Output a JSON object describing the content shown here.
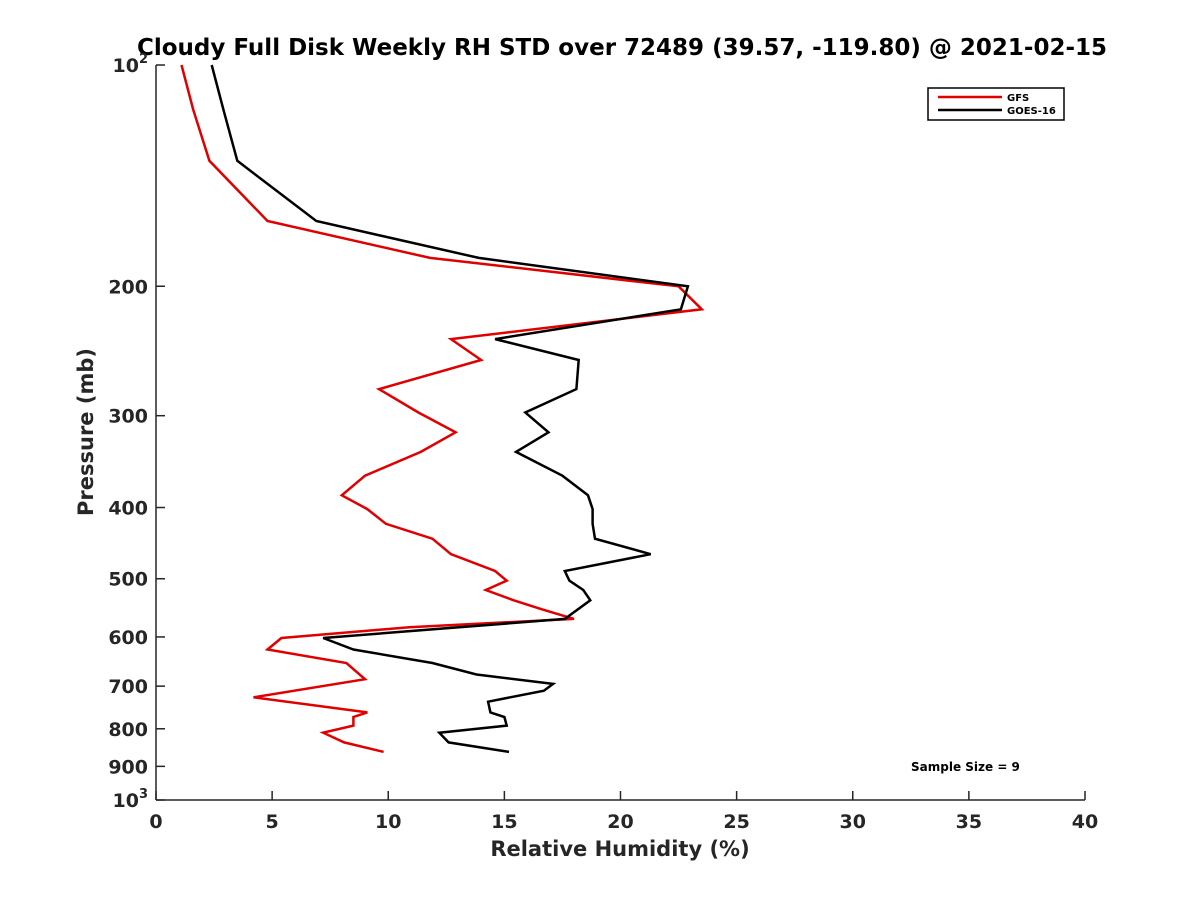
{
  "chart_data": {
    "type": "line",
    "title": "Cloudy Full Disk Weekly RH STD over 72489 (39.57, -119.80) @ 2021-02-15",
    "xlabel": "Relative Humidity (%)",
    "ylabel": "Pressure (mb)",
    "xlim": [
      0,
      40
    ],
    "ylim": [
      100,
      1000
    ],
    "y_scale": "log",
    "y_reversed": true,
    "x_ticks": [
      0,
      5,
      10,
      15,
      20,
      25,
      30,
      35,
      40
    ],
    "y_ticks": [
      {
        "value": 100,
        "label": "10",
        "sup": "2"
      },
      {
        "value": 200,
        "label": "200"
      },
      {
        "value": 300,
        "label": "300"
      },
      {
        "value": 400,
        "label": "400"
      },
      {
        "value": 500,
        "label": "500"
      },
      {
        "value": 600,
        "label": "600"
      },
      {
        "value": 700,
        "label": "700"
      },
      {
        "value": 800,
        "label": "800"
      },
      {
        "value": 900,
        "label": "900"
      },
      {
        "value": 1000,
        "label": "10",
        "sup": "3"
      }
    ],
    "grid": false,
    "legend": "top-right",
    "annotation": "Sample Size = 9",
    "series": [
      {
        "name": "GFS",
        "color": "#e00000",
        "points": [
          [
            1.1,
            100
          ],
          [
            1.6,
            115
          ],
          [
            2.3,
            135
          ],
          [
            4.8,
            163
          ],
          [
            11.8,
            183
          ],
          [
            22.5,
            200
          ],
          [
            23.5,
            215
          ],
          [
            12.7,
            236
          ],
          [
            14.0,
            252
          ],
          [
            9.6,
            276
          ],
          [
            11.3,
            297
          ],
          [
            12.9,
            316
          ],
          [
            11.4,
            336
          ],
          [
            9.0,
            362
          ],
          [
            8.0,
            385
          ],
          [
            9.1,
            402
          ],
          [
            9.9,
            421
          ],
          [
            11.9,
            441
          ],
          [
            12.7,
            463
          ],
          [
            14.6,
            488
          ],
          [
            15.1,
            503
          ],
          [
            14.2,
            518
          ],
          [
            15.4,
            535
          ],
          [
            16.6,
            550
          ],
          [
            18.0,
            567
          ],
          [
            10.9,
            582
          ],
          [
            5.4,
            602
          ],
          [
            4.8,
            624
          ],
          [
            8.2,
            651
          ],
          [
            9.0,
            685
          ],
          [
            4.2,
            725
          ],
          [
            9.1,
            760
          ],
          [
            8.5,
            771
          ],
          [
            8.5,
            792
          ],
          [
            7.2,
            810
          ],
          [
            8.1,
            835
          ],
          [
            9.8,
            860
          ]
        ]
      },
      {
        "name": "GOES-16",
        "color": "#000000",
        "points": [
          [
            2.4,
            100
          ],
          [
            2.9,
            115
          ],
          [
            3.5,
            135
          ],
          [
            6.9,
            163
          ],
          [
            13.9,
            183
          ],
          [
            22.9,
            200
          ],
          [
            22.6,
            215
          ],
          [
            14.6,
            236
          ],
          [
            18.2,
            252
          ],
          [
            18.1,
            276
          ],
          [
            15.9,
            297
          ],
          [
            16.9,
            316
          ],
          [
            15.5,
            336
          ],
          [
            17.5,
            362
          ],
          [
            18.6,
            385
          ],
          [
            18.8,
            402
          ],
          [
            18.8,
            421
          ],
          [
            18.9,
            441
          ],
          [
            21.3,
            463
          ],
          [
            17.6,
            488
          ],
          [
            17.8,
            503
          ],
          [
            18.4,
            518
          ],
          [
            18.7,
            535
          ],
          [
            17.6,
            567
          ],
          [
            7.2,
            602
          ],
          [
            8.5,
            624
          ],
          [
            11.9,
            651
          ],
          [
            13.8,
            675
          ],
          [
            17.1,
            695
          ],
          [
            16.7,
            710
          ],
          [
            14.3,
            735
          ],
          [
            14.4,
            760
          ],
          [
            15.0,
            771
          ],
          [
            15.1,
            792
          ],
          [
            12.2,
            810
          ],
          [
            12.6,
            835
          ],
          [
            15.2,
            860
          ]
        ]
      }
    ]
  }
}
